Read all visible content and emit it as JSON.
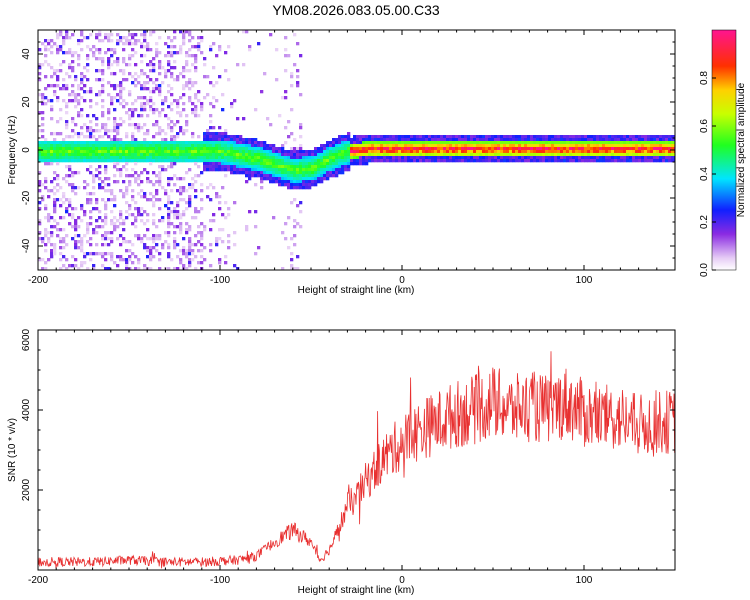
{
  "chart_data": [
    {
      "type": "heatmap",
      "title": "YM08.2026.083.05.00.C33",
      "xlabel": "Height of straight line (km)",
      "ylabel": "Frequency (Hz)",
      "xlim": [
        -200,
        150
      ],
      "ylim": [
        -50,
        50
      ],
      "x_ticks": [
        -200,
        -100,
        0,
        100
      ],
      "y_ticks": [
        -40,
        -20,
        0,
        20,
        40
      ],
      "colorbar": {
        "label": "Normalized spectral amplitude",
        "range": [
          0,
          1
        ],
        "ticks": [
          0.0,
          0.2,
          0.4,
          0.6,
          0.8
        ],
        "tick_labels": [
          "0.0",
          "0.2",
          "0.4",
          "0.6",
          "0.8"
        ]
      },
      "ridge": {
        "description_points_x": [
          -200,
          -150,
          -100,
          -80,
          -60,
          -50,
          -40,
          -30,
          -20,
          0,
          50,
          100,
          150
        ],
        "frequency_hz": [
          0,
          0,
          0,
          -3,
          -8,
          -7,
          -3,
          0,
          1,
          1,
          1,
          1,
          1
        ]
      }
    },
    {
      "type": "line",
      "xlabel": "Height of straight line (km)",
      "ylabel": "SNR (10 * v/v)",
      "xlim": [
        -200,
        150
      ],
      "ylim": [
        0,
        6000
      ],
      "x_ticks": [
        -200,
        -100,
        0,
        100
      ],
      "y_ticks": [
        2000,
        4000,
        6000
      ],
      "series": [
        {
          "name": "SNR",
          "color": "#e83030",
          "x": [
            -200,
            -170,
            -150,
            -130,
            -110,
            -90,
            -80,
            -70,
            -60,
            -50,
            -45,
            -40,
            -35,
            -30,
            -25,
            -20,
            -10,
            0,
            10,
            20,
            30,
            40,
            50,
            60,
            70,
            80,
            90,
            100,
            110,
            120,
            130,
            140,
            150
          ],
          "y": [
            200,
            200,
            250,
            200,
            200,
            250,
            350,
            700,
            1000,
            700,
            250,
            500,
            1000,
            1600,
            1800,
            2200,
            2800,
            3200,
            3500,
            3700,
            3900,
            4000,
            4200,
            4000,
            4100,
            4000,
            4200,
            3900,
            3800,
            3800,
            3600,
            3700,
            3700
          ]
        }
      ]
    }
  ]
}
